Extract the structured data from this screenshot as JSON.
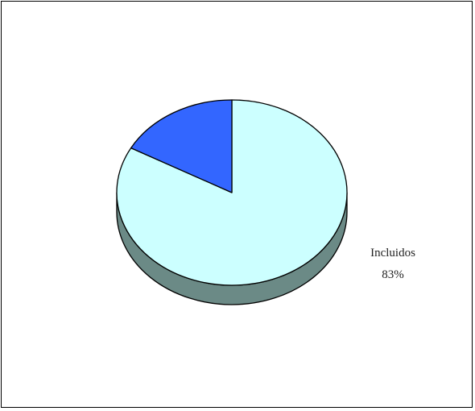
{
  "chart_data": {
    "type": "pie",
    "title": "",
    "slices": [
      {
        "label": "Incluidos",
        "value": 83,
        "display": "83%",
        "color": "#ccffff",
        "side_color": "#6b8a86"
      },
      {
        "label": "",
        "value": 17,
        "display": "",
        "color": "#3366ff",
        "side_color": "#1a3380"
      }
    ],
    "three_d": true,
    "legend": "none",
    "edge_color": "#000000"
  }
}
